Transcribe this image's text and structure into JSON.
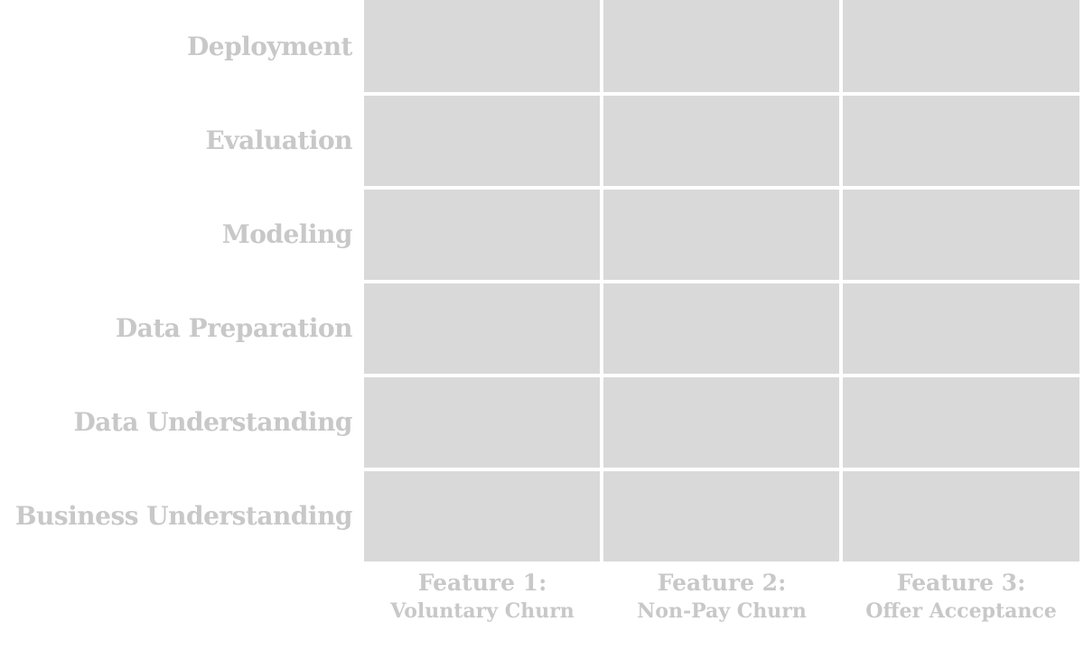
{
  "rows": [
    {
      "label": "Deployment"
    },
    {
      "label": "Evaluation"
    },
    {
      "label": "Modeling"
    },
    {
      "label": "Data Preparation"
    },
    {
      "label": "Data Understanding"
    },
    {
      "label": "Business Understanding"
    }
  ],
  "columns": [
    {
      "title": "Feature 1:",
      "subtitle": "Voluntary Churn"
    },
    {
      "title": "Feature 2:",
      "subtitle": "Non-Pay Churn"
    },
    {
      "title": "Feature 3:",
      "subtitle": "Offer Acceptance"
    }
  ],
  "colors": {
    "cell": "#d9d9d9",
    "label": "#c8c8c8",
    "background": "#ffffff"
  }
}
